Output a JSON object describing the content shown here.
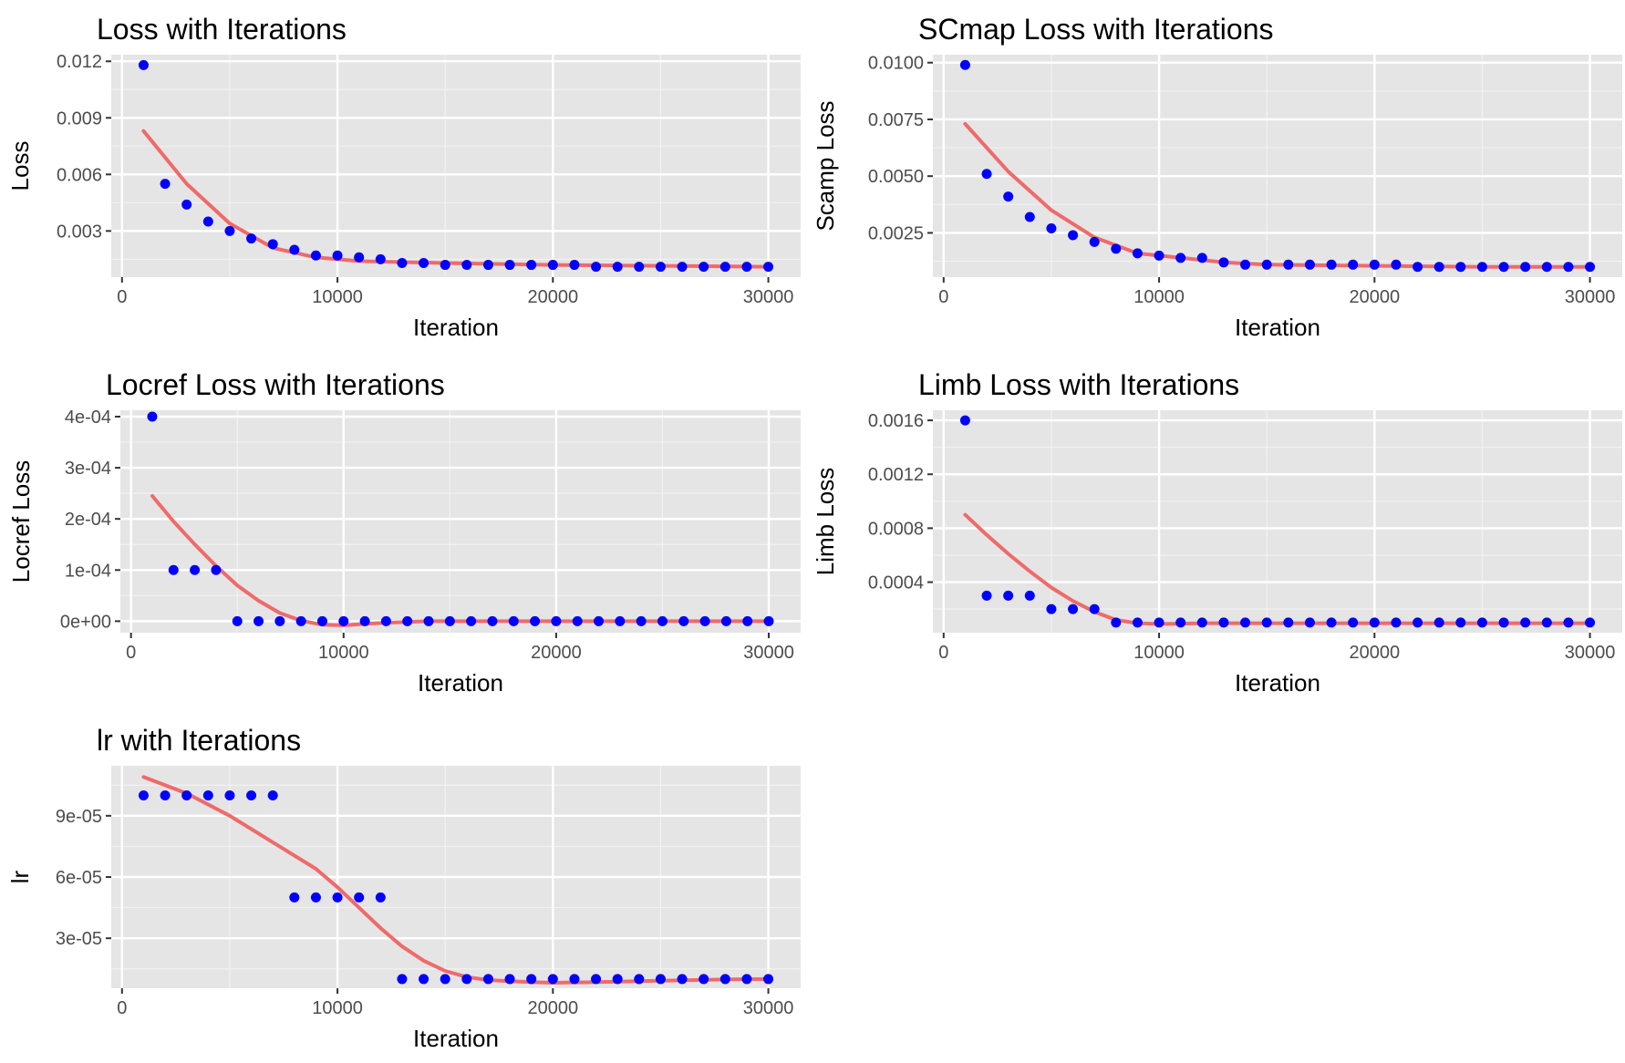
{
  "colors": {
    "panel_bg": "#e5e5e5",
    "grid_major": "#ffffff",
    "grid_minor": "#f2f2f2",
    "point": "#0000ff",
    "smooth": "#ef6a6a",
    "tick_text": "#4d4d4d"
  },
  "chart_data": [
    {
      "id": "loss",
      "type": "scatter",
      "title": "Loss with Iterations",
      "xlabel": "Iteration",
      "ylabel": "Loss",
      "xlim": [
        -500,
        31500
      ],
      "ylim": [
        0.00055,
        0.01235
      ],
      "xticks": [
        0,
        10000,
        20000,
        30000
      ],
      "xtick_labels": [
        "0",
        "10000",
        "20000",
        "30000"
      ],
      "yticks": [
        0.003,
        0.006,
        0.009,
        0.012
      ],
      "ytick_labels": [
        "0.003",
        "0.006",
        "0.009",
        "0.012"
      ],
      "grid": true,
      "x": [
        1000,
        2000,
        3000,
        4000,
        5000,
        6000,
        7000,
        8000,
        9000,
        10000,
        11000,
        12000,
        13000,
        14000,
        15000,
        16000,
        17000,
        18000,
        19000,
        20000,
        21000,
        22000,
        23000,
        24000,
        25000,
        26000,
        27000,
        28000,
        29000,
        30000
      ],
      "y": [
        0.0118,
        0.0055,
        0.0044,
        0.0035,
        0.003,
        0.0026,
        0.0023,
        0.002,
        0.0017,
        0.0017,
        0.0016,
        0.0015,
        0.0013,
        0.0013,
        0.0012,
        0.0012,
        0.0012,
        0.0012,
        0.0012,
        0.0012,
        0.0012,
        0.0011,
        0.0011,
        0.0011,
        0.0011,
        0.0011,
        0.0011,
        0.0011,
        0.0011,
        0.0011
      ],
      "smooth": {
        "x": [
          1000,
          3000,
          5000,
          7000,
          9000,
          11000,
          13000,
          15000,
          20000,
          25000,
          30000
        ],
        "y": [
          0.0083,
          0.0055,
          0.0034,
          0.0021,
          0.0016,
          0.0014,
          0.00135,
          0.0013,
          0.0012,
          0.00115,
          0.0011
        ]
      }
    },
    {
      "id": "scmap",
      "type": "scatter",
      "title": "SCmap Loss with Iterations",
      "xlabel": "Iteration",
      "ylabel": "Scamp Loss",
      "xlim": [
        -500,
        31500
      ],
      "ylim": [
        0.00055,
        0.01035
      ],
      "xticks": [
        0,
        10000,
        20000,
        30000
      ],
      "xtick_labels": [
        "0",
        "10000",
        "20000",
        "30000"
      ],
      "yticks": [
        0.0025,
        0.005,
        0.0075,
        0.01
      ],
      "ytick_labels": [
        "0.0025",
        "0.0050",
        "0.0075",
        "0.0100"
      ],
      "grid": true,
      "x": [
        1000,
        2000,
        3000,
        4000,
        5000,
        6000,
        7000,
        8000,
        9000,
        10000,
        11000,
        12000,
        13000,
        14000,
        15000,
        16000,
        17000,
        18000,
        19000,
        20000,
        21000,
        22000,
        23000,
        24000,
        25000,
        26000,
        27000,
        28000,
        29000,
        30000
      ],
      "y": [
        0.0099,
        0.0051,
        0.0041,
        0.0032,
        0.0027,
        0.0024,
        0.0021,
        0.0018,
        0.0016,
        0.0015,
        0.0014,
        0.0014,
        0.0012,
        0.0011,
        0.0011,
        0.0011,
        0.0011,
        0.0011,
        0.0011,
        0.0011,
        0.0011,
        0.001,
        0.001,
        0.001,
        0.001,
        0.001,
        0.001,
        0.001,
        0.001,
        0.001
      ],
      "smooth": {
        "x": [
          1000,
          3000,
          5000,
          7000,
          9000,
          11000,
          13000,
          15000,
          20000,
          25000,
          30000
        ],
        "y": [
          0.0073,
          0.0052,
          0.0035,
          0.0023,
          0.0016,
          0.0014,
          0.0012,
          0.0011,
          0.00105,
          0.001,
          0.001
        ]
      }
    },
    {
      "id": "locref",
      "type": "scatter",
      "title": "Locref Loss with Iterations",
      "xlabel": "Iteration",
      "ylabel": "Locref Loss",
      "xlim": [
        -500,
        31500
      ],
      "ylim": [
        -2.25e-05,
        0.0004125
      ],
      "xticks": [
        0,
        10000,
        20000,
        30000
      ],
      "xtick_labels": [
        "0",
        "10000",
        "20000",
        "30000"
      ],
      "yticks": [
        0,
        0.0001,
        0.0002,
        0.0003,
        0.0004
      ],
      "ytick_labels": [
        "0e+00",
        "1e-04",
        "2e-04",
        "3e-04",
        "4e-04"
      ],
      "grid": true,
      "x": [
        1000,
        2000,
        3000,
        4000,
        5000,
        6000,
        7000,
        8000,
        9000,
        10000,
        11000,
        12000,
        13000,
        14000,
        15000,
        16000,
        17000,
        18000,
        19000,
        20000,
        21000,
        22000,
        23000,
        24000,
        25000,
        26000,
        27000,
        28000,
        29000,
        30000
      ],
      "y": [
        0.0004,
        0.0001,
        0.0001,
        0.0001,
        0,
        0,
        0,
        0,
        0,
        0,
        0,
        0,
        0,
        0,
        0,
        0,
        0,
        0,
        0,
        0,
        0,
        0,
        0,
        0,
        0,
        0,
        0,
        0,
        0,
        0
      ],
      "smooth": {
        "x": [
          1000,
          2000,
          3000,
          4000,
          5000,
          6000,
          7000,
          8000,
          9000,
          10000,
          11000,
          12000,
          14000,
          17000,
          20000,
          25000,
          30000
        ],
        "y": [
          0.000245,
          0.000195,
          0.00015,
          0.000108,
          7e-05,
          4e-05,
          1.6e-05,
          1e-06,
          -7e-06,
          -8e-06,
          -5e-06,
          -3e-06,
          0,
          0,
          0,
          0,
          0
        ]
      }
    },
    {
      "id": "limb",
      "type": "scatter",
      "title": "Limb Loss with Iterations",
      "xlabel": "Iteration",
      "ylabel": "Limb Loss",
      "xlim": [
        -500,
        31500
      ],
      "ylim": [
        2.5e-05,
        0.001675
      ],
      "xticks": [
        0,
        10000,
        20000,
        30000
      ],
      "xtick_labels": [
        "0",
        "10000",
        "20000",
        "30000"
      ],
      "yticks": [
        0.0004,
        0.0008,
        0.0012,
        0.0016
      ],
      "ytick_labels": [
        "0.0004",
        "0.0008",
        "0.0012",
        "0.0016"
      ],
      "grid": true,
      "x": [
        1000,
        2000,
        3000,
        4000,
        5000,
        6000,
        7000,
        8000,
        9000,
        10000,
        11000,
        12000,
        13000,
        14000,
        15000,
        16000,
        17000,
        18000,
        19000,
        20000,
        21000,
        22000,
        23000,
        24000,
        25000,
        26000,
        27000,
        28000,
        29000,
        30000
      ],
      "y": [
        0.0016,
        0.0003,
        0.0003,
        0.0003,
        0.0002,
        0.0002,
        0.0002,
        0.0001,
        0.0001,
        0.0001,
        0.0001,
        0.0001,
        0.0001,
        0.0001,
        0.0001,
        0.0001,
        0.0001,
        0.0001,
        0.0001,
        0.0001,
        0.0001,
        0.0001,
        0.0001,
        0.0001,
        0.0001,
        0.0001,
        0.0001,
        0.0001,
        0.0001,
        0.0001
      ],
      "smooth": {
        "x": [
          1000,
          2000,
          3000,
          4000,
          5000,
          6000,
          7000,
          8000,
          9000,
          10000,
          11000,
          12000,
          15000,
          20000,
          25000,
          30000
        ],
        "y": [
          0.0009,
          0.00075,
          0.00061,
          0.00048,
          0.00036,
          0.00026,
          0.00018,
          0.00012,
          9.5e-05,
          9e-05,
          9.2e-05,
          9.5e-05,
          9.5e-05,
          9.5e-05,
          9.5e-05,
          9.5e-05
        ]
      }
    },
    {
      "id": "lr",
      "type": "scatter",
      "title": "lr with Iterations",
      "xlabel": "Iteration",
      "ylabel": "lr",
      "xlim": [
        -500,
        31500
      ],
      "ylim": [
        5.5e-06,
        0.0001145
      ],
      "xticks": [
        0,
        10000,
        20000,
        30000
      ],
      "xtick_labels": [
        "0",
        "10000",
        "20000",
        "30000"
      ],
      "yticks": [
        3e-05,
        6e-05,
        9e-05
      ],
      "ytick_labels": [
        "3e-05",
        "6e-05",
        "9e-05"
      ],
      "grid": true,
      "x": [
        1000,
        2000,
        3000,
        4000,
        5000,
        6000,
        7000,
        8000,
        9000,
        10000,
        11000,
        12000,
        13000,
        14000,
        15000,
        16000,
        17000,
        18000,
        19000,
        20000,
        21000,
        22000,
        23000,
        24000,
        25000,
        26000,
        27000,
        28000,
        29000,
        30000
      ],
      "y": [
        0.0001,
        0.0001,
        0.0001,
        0.0001,
        0.0001,
        0.0001,
        0.0001,
        5e-05,
        5e-05,
        5e-05,
        5e-05,
        5e-05,
        1e-05,
        1e-05,
        1e-05,
        1e-05,
        1e-05,
        1e-05,
        1e-05,
        1e-05,
        1e-05,
        1e-05,
        1e-05,
        1e-05,
        1e-05,
        1e-05,
        1e-05,
        1e-05,
        1e-05,
        1e-05
      ],
      "smooth": {
        "x": [
          1000,
          3000,
          5000,
          7000,
          9000,
          10000,
          11000,
          12000,
          13000,
          14000,
          15000,
          16000,
          17000,
          18000,
          19000,
          20000,
          22000,
          25000,
          28000,
          30000
        ],
        "y": [
          0.000109,
          0.000101,
          9e-05,
          7.7e-05,
          6.4e-05,
          5.5e-05,
          4.5e-05,
          3.5e-05,
          2.6e-05,
          1.9e-05,
          1.4e-05,
          1.1e-05,
          9.5e-06,
          9e-06,
          8.5e-06,
          8.2e-06,
          8.5e-06,
          9.2e-06,
          9.8e-06,
          1e-05
        ]
      }
    }
  ]
}
